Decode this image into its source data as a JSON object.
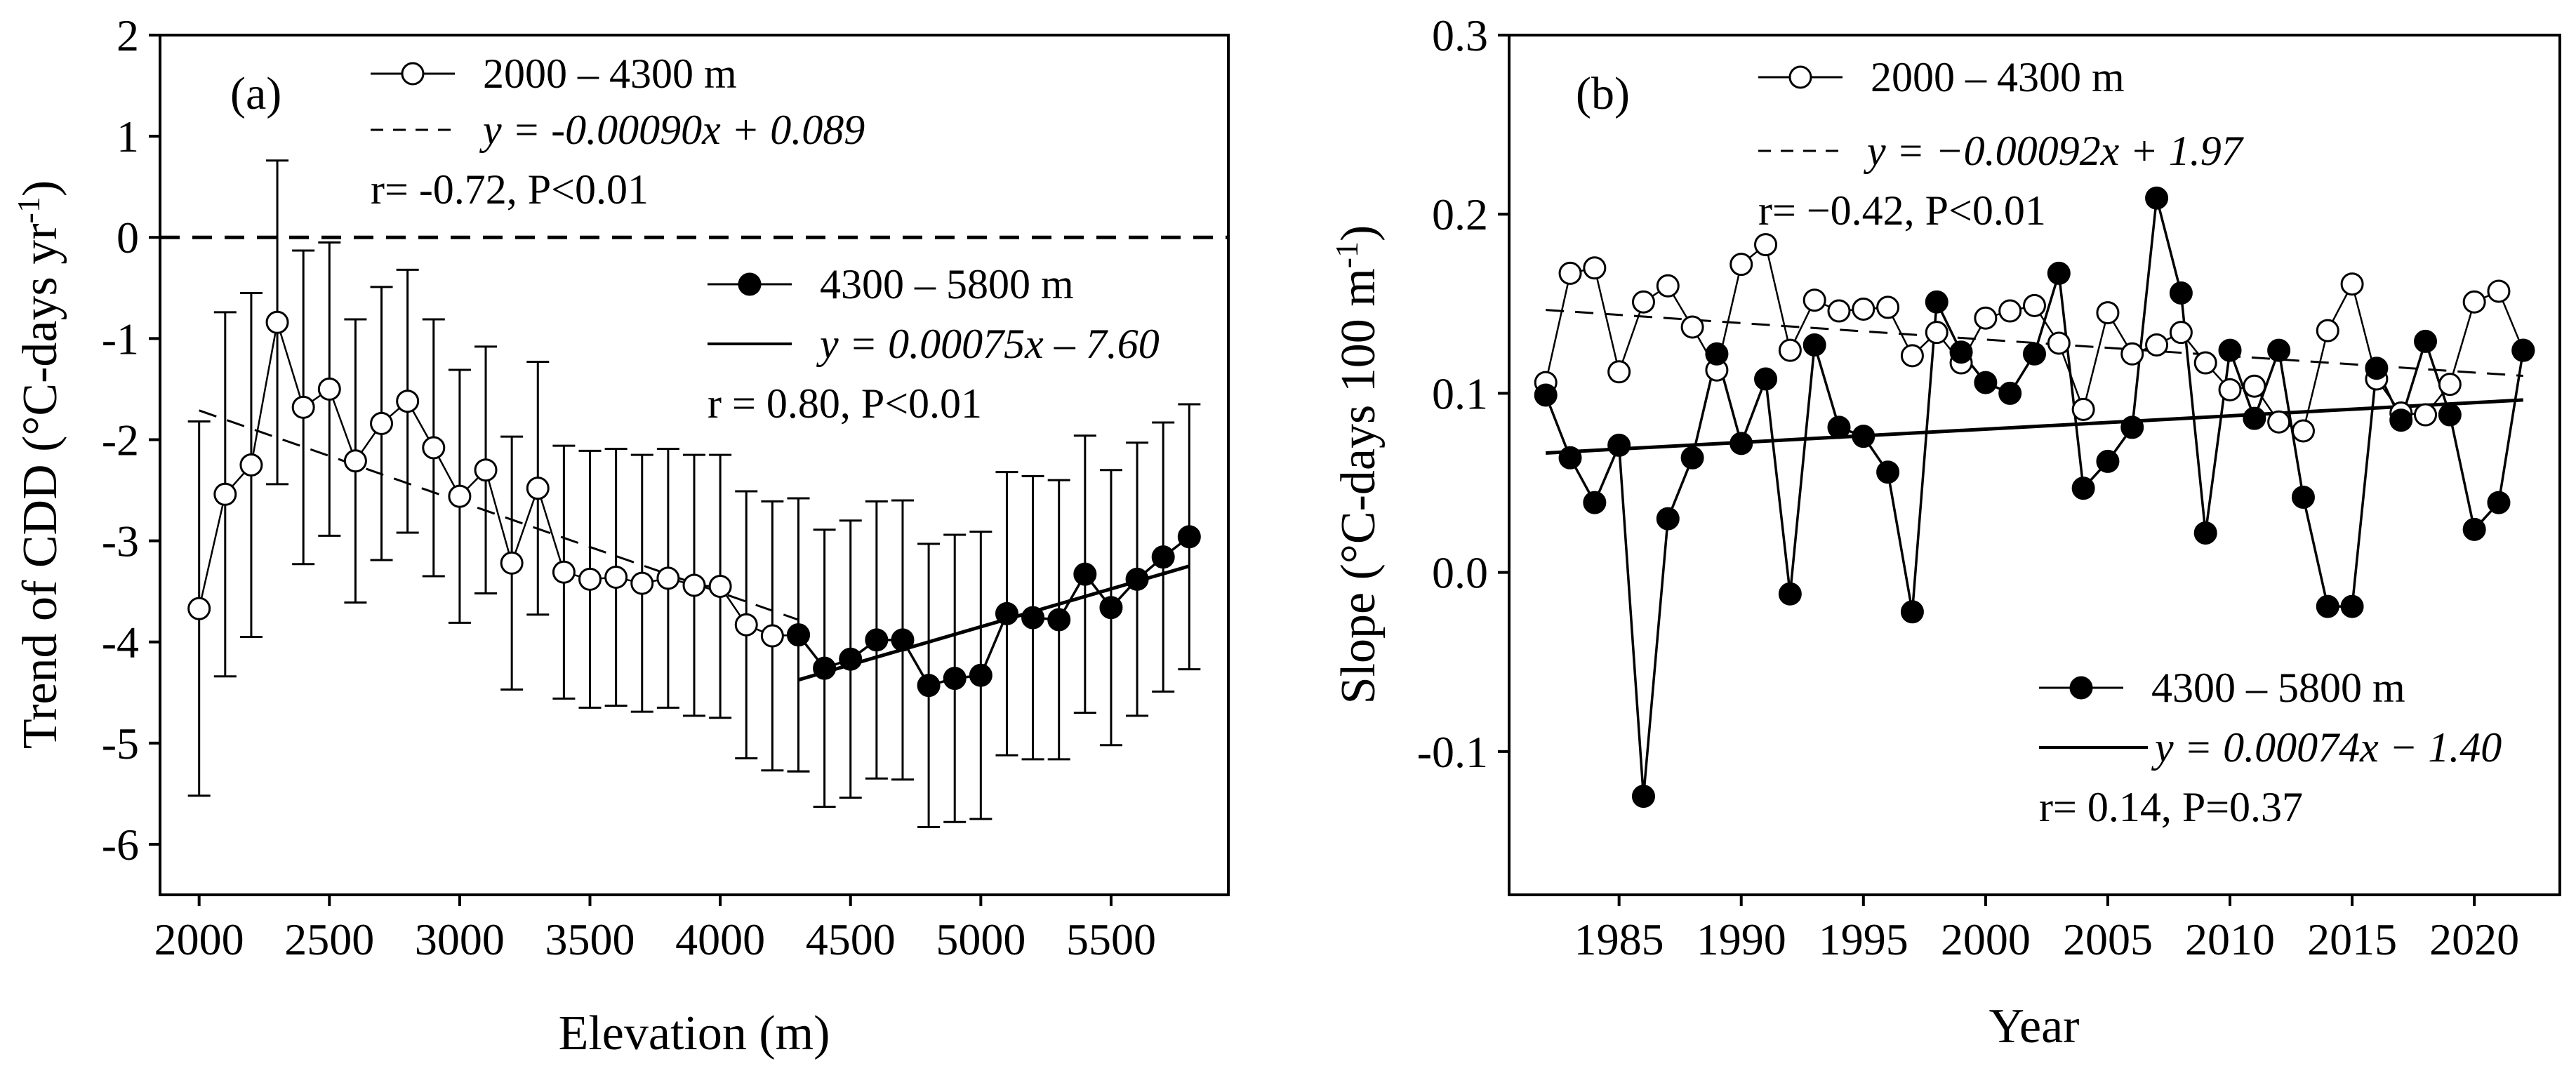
{
  "chart_data": [
    {
      "panel_label": "(a)",
      "type": "line",
      "xlabel": "Elevation (m)",
      "ylabel_main": "Trend of CDD (°C-days yr",
      "ylabel_sup": "-1",
      "ylabel_end": ")",
      "xlim": [
        1850,
        5950
      ],
      "ylim": [
        -6.5,
        2
      ],
      "xticks": [
        2000,
        2500,
        3000,
        3500,
        4000,
        4500,
        5000,
        5500
      ],
      "yticks": [
        -6,
        -5,
        -4,
        -3,
        -2,
        -1,
        0,
        1,
        2
      ],
      "zero_line": 0,
      "series": [
        {
          "name": "2000 – 4300 m",
          "marker": "open-circle",
          "x": [
            2000,
            2100,
            2200,
            2300,
            2400,
            2500,
            2600,
            2700,
            2800,
            2900,
            3000,
            3100,
            3200,
            3300,
            3400,
            3500,
            3600,
            3700,
            3800,
            3900,
            4000,
            4100,
            4200,
            4300
          ],
          "y": [
            -3.67,
            -2.54,
            -2.25,
            -0.84,
            -1.68,
            -1.5,
            -2.21,
            -1.84,
            -1.62,
            -2.08,
            -2.56,
            -2.3,
            -3.22,
            -2.48,
            -3.31,
            -3.38,
            -3.36,
            -3.42,
            -3.37,
            -3.44,
            -3.45,
            -3.83,
            -3.94,
            -3.93
          ],
          "err": [
            1.85,
            1.8,
            1.7,
            1.6,
            1.55,
            1.45,
            1.4,
            1.35,
            1.3,
            1.27,
            1.25,
            1.22,
            1.25,
            1.25,
            1.25,
            1.27,
            1.27,
            1.27,
            1.28,
            1.29,
            1.3,
            1.32,
            1.33,
            1.35
          ],
          "fit_label": "y = -0.00090x + 0.089",
          "fit_slope": -0.0009,
          "fit_intercept": 0.089,
          "fit_range": [
            2000,
            4300
          ],
          "stats": "r= -0.72, P<0.01"
        },
        {
          "name": "4300 – 5800 m",
          "marker": "filled-circle",
          "x": [
            4300,
            4400,
            4500,
            4600,
            4700,
            4800,
            4900,
            5000,
            5100,
            5200,
            5300,
            5400,
            5500,
            5600,
            5700,
            5800
          ],
          "y": [
            -3.93,
            -4.26,
            -4.17,
            -3.98,
            -3.98,
            -4.43,
            -4.36,
            -4.33,
            -3.72,
            -3.76,
            -3.78,
            -3.33,
            -3.66,
            -3.38,
            -3.16,
            -2.96
          ],
          "err": [
            1.35,
            1.37,
            1.37,
            1.37,
            1.38,
            1.4,
            1.42,
            1.42,
            1.4,
            1.4,
            1.38,
            1.37,
            1.36,
            1.35,
            1.33,
            1.31
          ],
          "fit_label": "y = 0.00075x  – 7.60",
          "fit_slope": 0.00075,
          "fit_intercept": -7.6,
          "fit_range": [
            4300,
            5800
          ],
          "stats": "r = 0.80, P<0.01"
        }
      ]
    },
    {
      "panel_label": "(b)",
      "type": "line",
      "xlabel": "Year",
      "ylabel_main": "Slope (°C-days 100 m",
      "ylabel_sup": "-1",
      "ylabel_end": ")",
      "xlim": [
        1980.5,
        2023.5
      ],
      "ylim": [
        -0.18,
        0.3
      ],
      "xticks": [
        1985,
        1990,
        1995,
        2000,
        2005,
        2010,
        2015,
        2020
      ],
      "yticks": [
        -0.1,
        0.0,
        0.1,
        0.2,
        0.3
      ],
      "ytick_labels": [
        "-0.1",
        "0.0",
        "0.1",
        "0.2",
        "0.3"
      ],
      "series": [
        {
          "name": "2000 – 4300 m",
          "marker": "open-circle",
          "x": [
            1982,
            1983,
            1984,
            1985,
            1986,
            1987,
            1988,
            1989,
            1990,
            1991,
            1992,
            1993,
            1994,
            1995,
            1996,
            1997,
            1998,
            1999,
            2000,
            2001,
            2002,
            2003,
            2004,
            2005,
            2006,
            2007,
            2008,
            2009,
            2010,
            2011,
            2012,
            2013,
            2014,
            2015,
            2016,
            2017,
            2018,
            2019,
            2020,
            2021,
            2022
          ],
          "y": [
            0.106,
            0.167,
            0.17,
            0.112,
            0.151,
            0.16,
            0.137,
            0.113,
            0.172,
            0.183,
            0.124,
            0.152,
            0.146,
            0.147,
            0.148,
            0.121,
            0.134,
            0.117,
            0.142,
            0.146,
            0.149,
            0.128,
            0.091,
            0.145,
            0.122,
            0.127,
            0.134,
            0.117,
            0.102,
            0.104,
            0.084,
            0.079,
            0.135,
            0.161,
            0.108,
            0.089,
            0.088,
            0.105,
            0.151,
            0.157,
            0.124
          ],
          "fit_label": "y = −0.00092x + 1.97",
          "fit_slope": -0.00092,
          "fit_intercept": 1.97,
          "fit_range": [
            1982,
            2022
          ],
          "stats": "r= −0.42, P<0.01"
        },
        {
          "name": "4300 – 5800 m",
          "marker": "filled-circle",
          "x": [
            1982,
            1983,
            1984,
            1985,
            1986,
            1987,
            1988,
            1989,
            1990,
            1991,
            1992,
            1993,
            1994,
            1995,
            1996,
            1997,
            1998,
            1999,
            2000,
            2001,
            2002,
            2003,
            2004,
            2005,
            2006,
            2007,
            2008,
            2009,
            2010,
            2011,
            2012,
            2013,
            2014,
            2015,
            2016,
            2017,
            2018,
            2019,
            2020,
            2021,
            2022
          ],
          "y": [
            0.099,
            0.064,
            0.039,
            0.071,
            -0.125,
            0.03,
            0.064,
            0.122,
            0.072,
            0.108,
            -0.012,
            0.127,
            0.081,
            0.076,
            0.056,
            -0.022,
            0.151,
            0.123,
            0.106,
            0.1,
            0.122,
            0.167,
            0.047,
            0.062,
            0.081,
            0.209,
            0.156,
            0.022,
            0.124,
            0.086,
            0.124,
            0.042,
            -0.019,
            -0.019,
            0.114,
            0.085,
            0.129,
            0.088,
            0.024,
            0.039,
            0.124
          ],
          "fit_label": "y = 0.00074x − 1.40",
          "fit_slope": 0.00074,
          "fit_intercept": -1.4,
          "fit_range": [
            1982,
            2022
          ],
          "stats": "r= 0.14, P=0.37"
        }
      ]
    }
  ]
}
